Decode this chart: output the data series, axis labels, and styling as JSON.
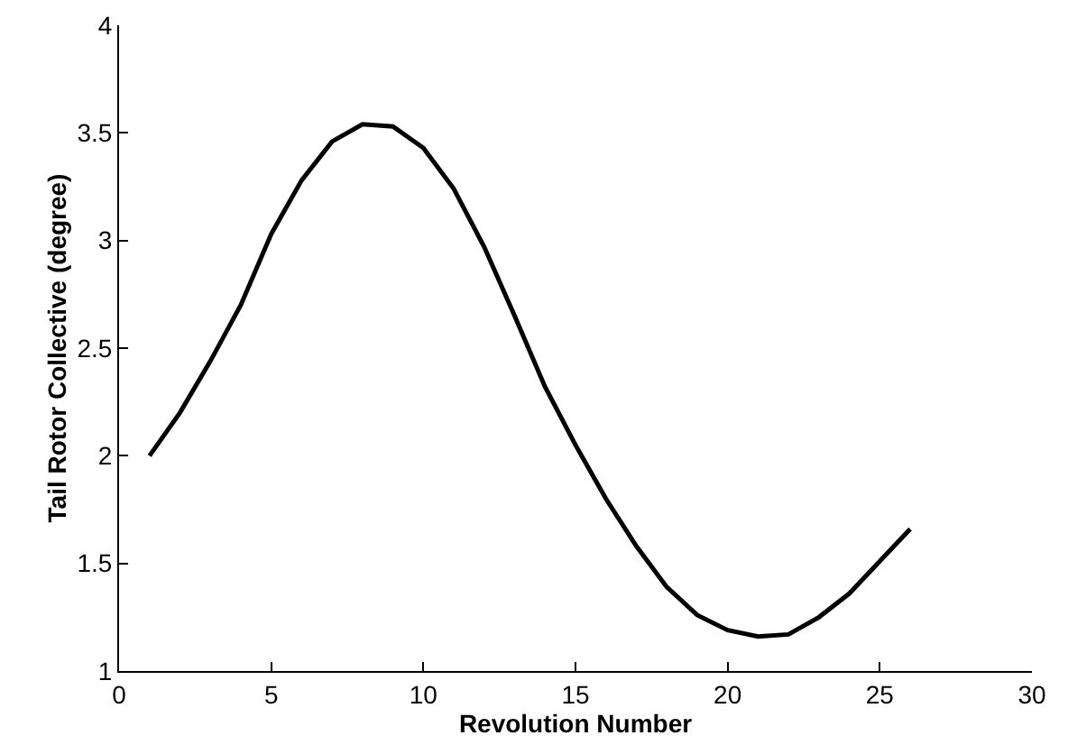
{
  "chart_data": {
    "type": "line",
    "xlabel": "Revolution Number",
    "ylabel": "Tail Rotor Collective (degree)",
    "x": [
      1,
      2,
      3,
      4,
      5,
      6,
      7,
      8,
      9,
      10,
      11,
      12,
      13,
      14,
      15,
      16,
      17,
      18,
      19,
      20,
      21,
      22,
      23,
      24,
      25,
      26
    ],
    "series": [
      {
        "color": "#000000",
        "values": [
          2.0,
          2.2,
          2.44,
          2.7,
          3.03,
          3.28,
          3.46,
          3.54,
          3.53,
          3.43,
          3.24,
          2.97,
          2.65,
          2.32,
          2.05,
          1.8,
          1.58,
          1.39,
          1.26,
          1.19,
          1.16,
          1.17,
          1.25,
          1.36,
          1.51,
          1.66
        ]
      }
    ],
    "xlim": [
      0,
      30
    ],
    "xticks": [
      0,
      5,
      10,
      15,
      20,
      25,
      30
    ],
    "ylim": [
      1,
      4
    ],
    "yticks": [
      1,
      1.5,
      2,
      2.5,
      3,
      3.5,
      4
    ],
    "grid": false,
    "marker": "none",
    "line_style": "solid"
  }
}
